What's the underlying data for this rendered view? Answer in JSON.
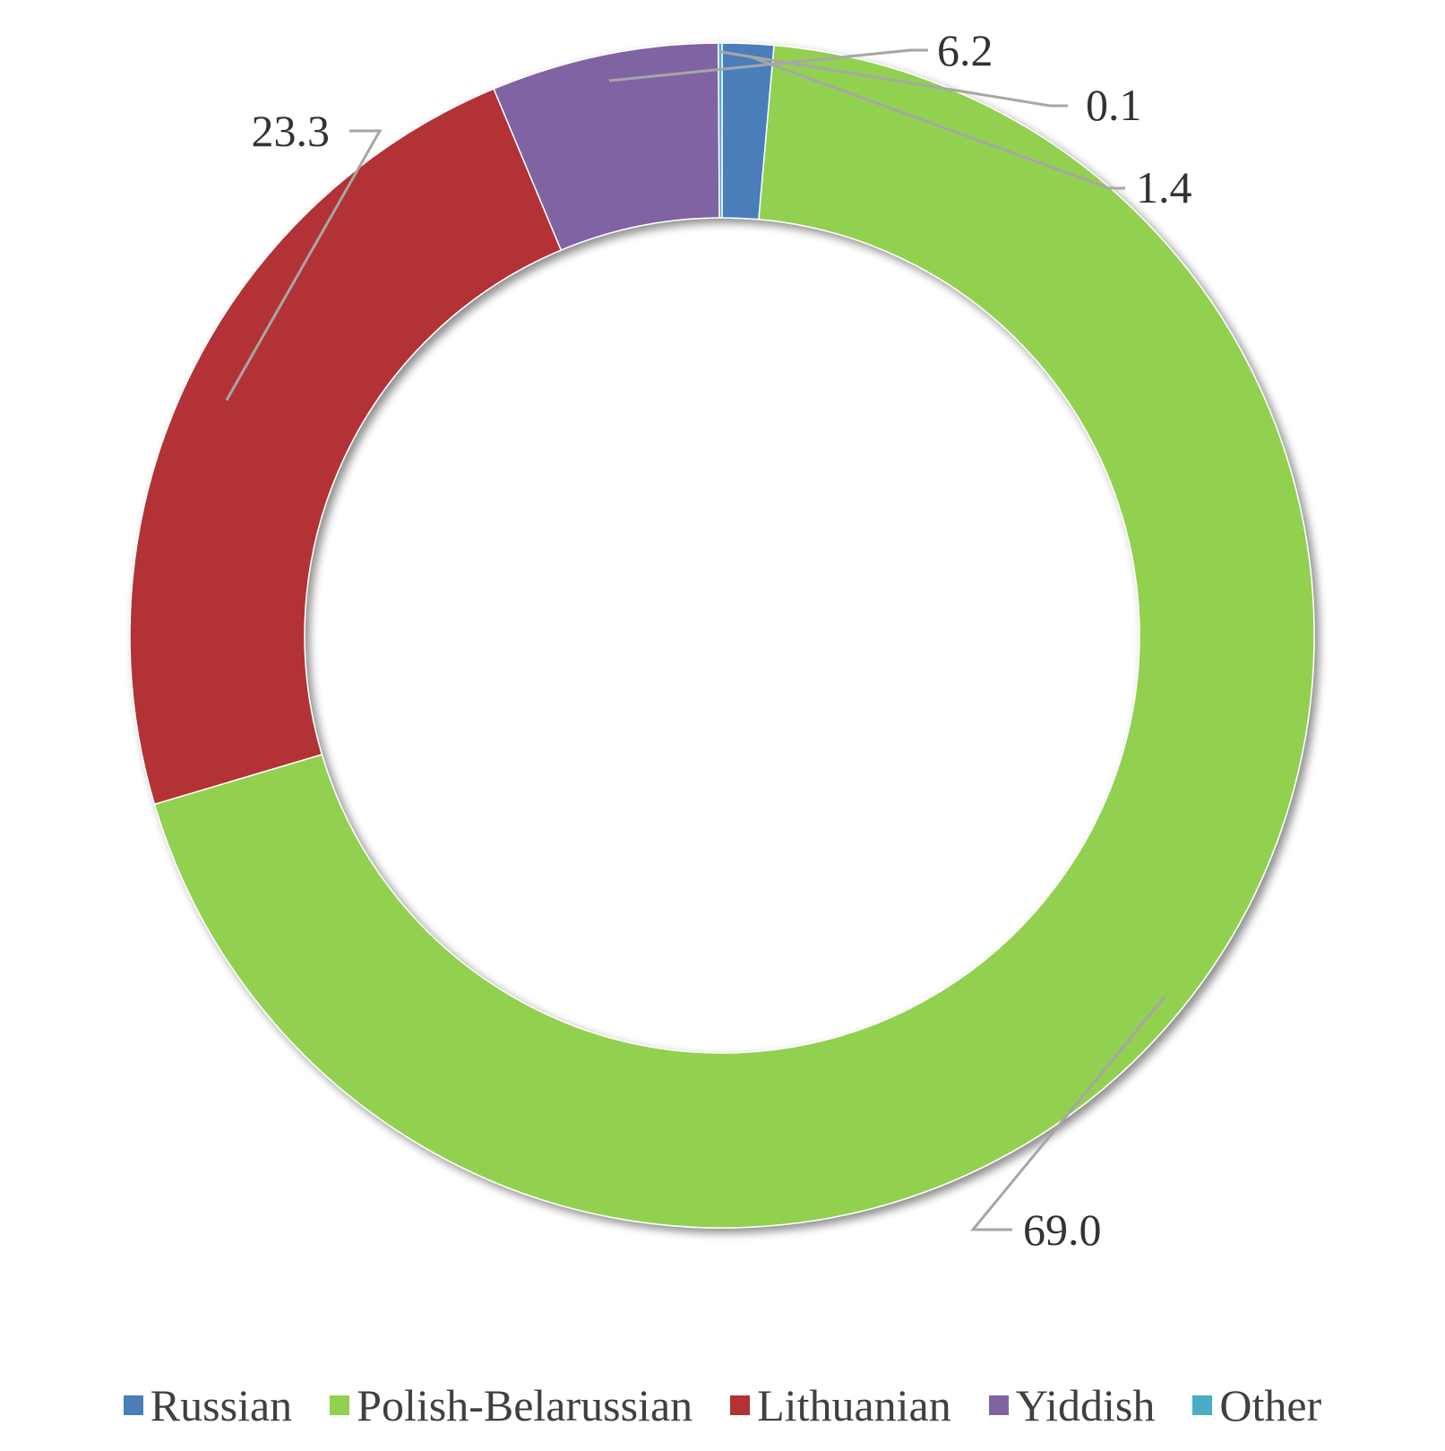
{
  "chart_data": {
    "type": "pie",
    "donut": true,
    "title": "",
    "legend_position": "bottom",
    "slices": [
      {
        "name": "Russian",
        "value": 1.4,
        "label": "1.4",
        "color": "#4a7ebb"
      },
      {
        "name": "Polish-Belarussian",
        "value": 69.0,
        "label": "69.0",
        "color": "#92d050"
      },
      {
        "name": "Lithuanian",
        "value": 23.3,
        "label": "23.3",
        "color": "#b33234"
      },
      {
        "name": "Yiddish",
        "value": 6.2,
        "label": "6.2",
        "color": "#8064a2"
      },
      {
        "name": "Other",
        "value": 0.1,
        "label": "0.1",
        "color": "#4bacc6"
      }
    ]
  }
}
